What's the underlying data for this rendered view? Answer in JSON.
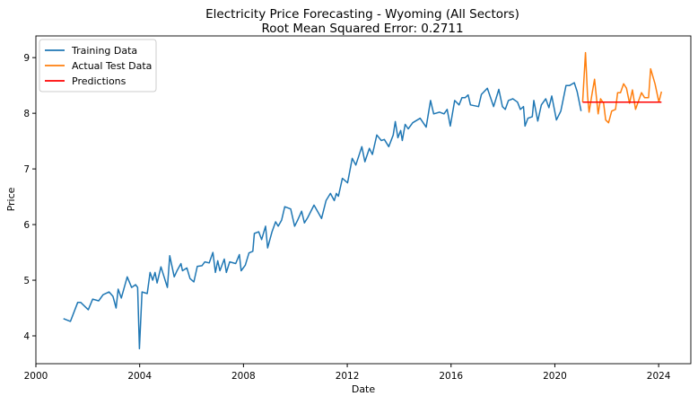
{
  "chart_data": {
    "type": "line",
    "title": "Electricity Price Forecasting - Wyoming (All Sectors)",
    "subtitle": "Root Mean Squared Error: 0.2711",
    "xlabel": "Date",
    "ylabel": "Price",
    "xlim": [
      2000,
      2025.24
    ],
    "ylim": [
      3.5,
      9.39
    ],
    "xticks": [
      2000,
      2004,
      2008,
      2012,
      2016,
      2020,
      2024
    ],
    "yticks": [
      4,
      5,
      6,
      7,
      8,
      9
    ],
    "grid": false,
    "legend_position": "top-left",
    "series": [
      {
        "name": "Training Data",
        "color": "#1f77b4",
        "points": [
          [
            2001.06,
            4.31
          ],
          [
            2001.33,
            4.26
          ],
          [
            2001.44,
            4.39
          ],
          [
            2001.61,
            4.6
          ],
          [
            2001.73,
            4.6
          ],
          [
            2002.02,
            4.47
          ],
          [
            2002.19,
            4.66
          ],
          [
            2002.42,
            4.63
          ],
          [
            2002.59,
            4.74
          ],
          [
            2002.82,
            4.79
          ],
          [
            2002.97,
            4.71
          ],
          [
            2003.09,
            4.5
          ],
          [
            2003.17,
            4.84
          ],
          [
            2003.29,
            4.68
          ],
          [
            2003.52,
            5.06
          ],
          [
            2003.69,
            4.87
          ],
          [
            2003.84,
            4.92
          ],
          [
            2003.92,
            4.87
          ],
          [
            2003.99,
            3.77
          ],
          [
            2004.09,
            4.79
          ],
          [
            2004.29,
            4.76
          ],
          [
            2004.4,
            5.14
          ],
          [
            2004.5,
            5.0
          ],
          [
            2004.59,
            5.14
          ],
          [
            2004.67,
            4.95
          ],
          [
            2004.82,
            5.24
          ],
          [
            2005.07,
            4.87
          ],
          [
            2005.16,
            5.44
          ],
          [
            2005.33,
            5.06
          ],
          [
            2005.44,
            5.17
          ],
          [
            2005.59,
            5.3
          ],
          [
            2005.65,
            5.17
          ],
          [
            2005.82,
            5.22
          ],
          [
            2005.94,
            5.03
          ],
          [
            2006.09,
            4.97
          ],
          [
            2006.22,
            5.25
          ],
          [
            2006.4,
            5.26
          ],
          [
            2006.51,
            5.33
          ],
          [
            2006.68,
            5.31
          ],
          [
            2006.82,
            5.5
          ],
          [
            2006.92,
            5.14
          ],
          [
            2007.01,
            5.35
          ],
          [
            2007.09,
            5.17
          ],
          [
            2007.26,
            5.38
          ],
          [
            2007.34,
            5.14
          ],
          [
            2007.47,
            5.33
          ],
          [
            2007.7,
            5.3
          ],
          [
            2007.84,
            5.46
          ],
          [
            2007.91,
            5.17
          ],
          [
            2008.07,
            5.27
          ],
          [
            2008.21,
            5.49
          ],
          [
            2008.36,
            5.52
          ],
          [
            2008.42,
            5.84
          ],
          [
            2008.59,
            5.87
          ],
          [
            2008.7,
            5.73
          ],
          [
            2008.85,
            5.97
          ],
          [
            2008.93,
            5.58
          ],
          [
            2009.1,
            5.87
          ],
          [
            2009.24,
            6.05
          ],
          [
            2009.34,
            5.97
          ],
          [
            2009.47,
            6.08
          ],
          [
            2009.59,
            6.32
          ],
          [
            2009.82,
            6.28
          ],
          [
            2009.97,
            5.97
          ],
          [
            2010.09,
            6.08
          ],
          [
            2010.24,
            6.24
          ],
          [
            2010.35,
            6.03
          ],
          [
            2010.47,
            6.12
          ],
          [
            2010.72,
            6.35
          ],
          [
            2011.01,
            6.11
          ],
          [
            2011.18,
            6.43
          ],
          [
            2011.35,
            6.56
          ],
          [
            2011.5,
            6.43
          ],
          [
            2011.58,
            6.56
          ],
          [
            2011.66,
            6.51
          ],
          [
            2011.81,
            6.83
          ],
          [
            2012.01,
            6.75
          ],
          [
            2012.19,
            7.19
          ],
          [
            2012.33,
            7.07
          ],
          [
            2012.56,
            7.4
          ],
          [
            2012.68,
            7.13
          ],
          [
            2012.85,
            7.37
          ],
          [
            2012.97,
            7.26
          ],
          [
            2013.14,
            7.61
          ],
          [
            2013.31,
            7.51
          ],
          [
            2013.43,
            7.53
          ],
          [
            2013.6,
            7.4
          ],
          [
            2013.77,
            7.61
          ],
          [
            2013.85,
            7.85
          ],
          [
            2013.95,
            7.56
          ],
          [
            2014.06,
            7.69
          ],
          [
            2014.12,
            7.51
          ],
          [
            2014.23,
            7.8
          ],
          [
            2014.35,
            7.72
          ],
          [
            2014.52,
            7.83
          ],
          [
            2014.81,
            7.91
          ],
          [
            2015.04,
            7.75
          ],
          [
            2015.21,
            8.23
          ],
          [
            2015.33,
            7.99
          ],
          [
            2015.56,
            8.02
          ],
          [
            2015.73,
            7.99
          ],
          [
            2015.85,
            8.07
          ],
          [
            2015.97,
            7.77
          ],
          [
            2016.14,
            8.23
          ],
          [
            2016.31,
            8.15
          ],
          [
            2016.42,
            8.28
          ],
          [
            2016.54,
            8.28
          ],
          [
            2016.66,
            8.33
          ],
          [
            2016.75,
            8.15
          ],
          [
            2017.06,
            8.12
          ],
          [
            2017.17,
            8.34
          ],
          [
            2017.4,
            8.45
          ],
          [
            2017.64,
            8.12
          ],
          [
            2017.84,
            8.43
          ],
          [
            2017.98,
            8.12
          ],
          [
            2018.09,
            8.07
          ],
          [
            2018.21,
            8.23
          ],
          [
            2018.38,
            8.26
          ],
          [
            2018.56,
            8.2
          ],
          [
            2018.67,
            8.07
          ],
          [
            2018.79,
            8.12
          ],
          [
            2018.85,
            7.77
          ],
          [
            2018.96,
            7.91
          ],
          [
            2019.13,
            7.94
          ],
          [
            2019.19,
            8.23
          ],
          [
            2019.34,
            7.86
          ],
          [
            2019.48,
            8.15
          ],
          [
            2019.65,
            8.26
          ],
          [
            2019.77,
            8.1
          ],
          [
            2019.88,
            8.31
          ],
          [
            2020.06,
            7.88
          ],
          [
            2020.23,
            8.04
          ],
          [
            2020.43,
            8.5
          ],
          [
            2020.57,
            8.5
          ],
          [
            2020.75,
            8.55
          ],
          [
            2020.86,
            8.39
          ],
          [
            2021.01,
            8.04
          ]
        ]
      },
      {
        "name": "Actual Test Data",
        "color": "#ff7f0e",
        "points": [
          [
            2021.07,
            8.2
          ],
          [
            2021.18,
            9.09
          ],
          [
            2021.26,
            8.31
          ],
          [
            2021.32,
            8.02
          ],
          [
            2021.44,
            8.37
          ],
          [
            2021.53,
            8.61
          ],
          [
            2021.67,
            7.99
          ],
          [
            2021.76,
            8.26
          ],
          [
            2021.88,
            8.18
          ],
          [
            2021.96,
            7.88
          ],
          [
            2022.07,
            7.83
          ],
          [
            2022.19,
            8.04
          ],
          [
            2022.34,
            8.07
          ],
          [
            2022.42,
            8.37
          ],
          [
            2022.53,
            8.37
          ],
          [
            2022.65,
            8.53
          ],
          [
            2022.76,
            8.45
          ],
          [
            2022.88,
            8.18
          ],
          [
            2022.99,
            8.42
          ],
          [
            2023.11,
            8.07
          ],
          [
            2023.34,
            8.37
          ],
          [
            2023.46,
            8.28
          ],
          [
            2023.61,
            8.28
          ],
          [
            2023.69,
            8.8
          ],
          [
            2023.86,
            8.53
          ],
          [
            2024.01,
            8.2
          ],
          [
            2024.11,
            8.39
          ]
        ]
      },
      {
        "name": "Predictions",
        "color": "#ff0000",
        "points": [
          [
            2021.07,
            8.2
          ],
          [
            2024.11,
            8.2
          ]
        ]
      }
    ]
  }
}
